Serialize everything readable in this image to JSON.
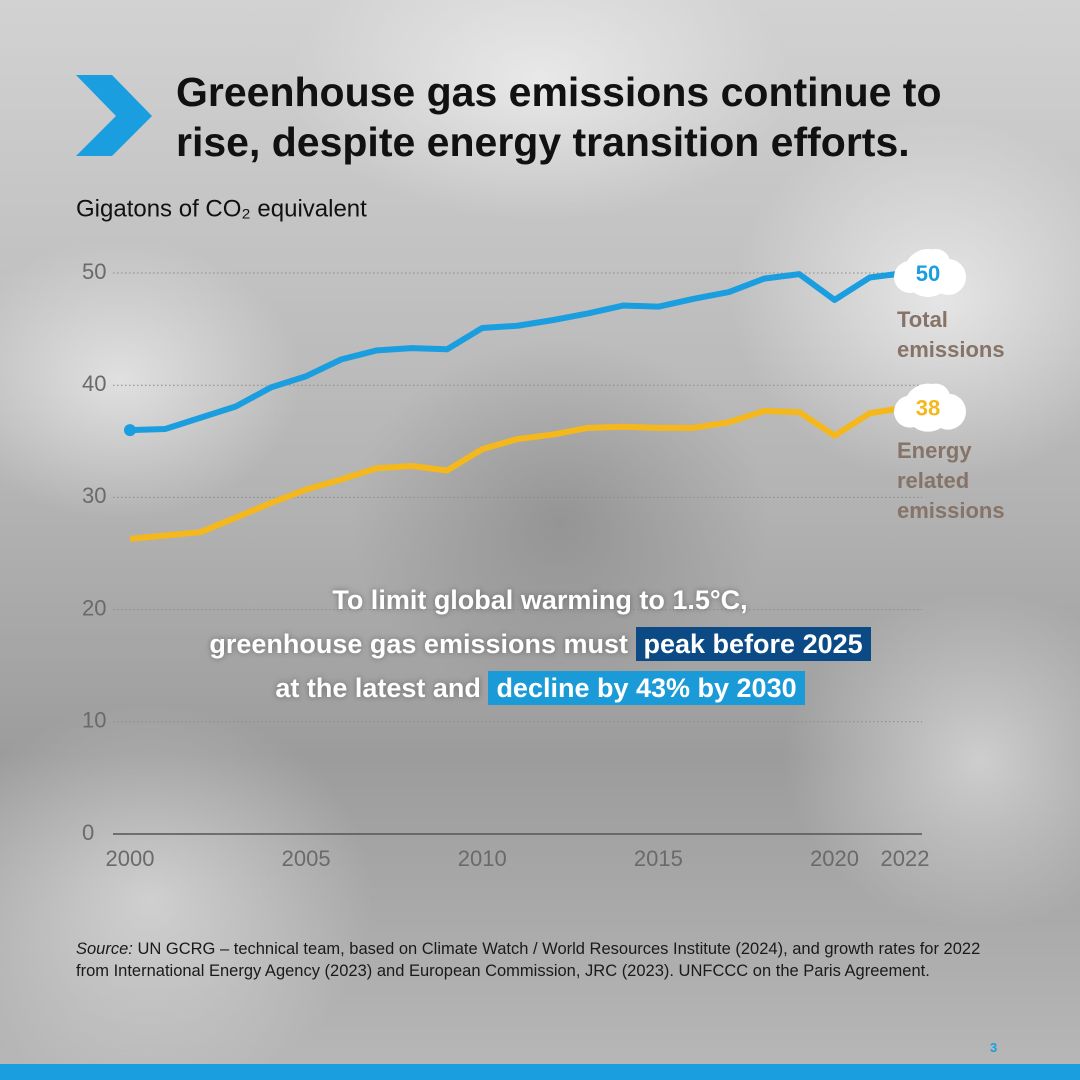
{
  "chart_data": {
    "type": "line",
    "title": [
      "Greenhouse gas emissions continue to",
      "rise, despite energy transition efforts."
    ],
    "y_label": "Gigatons of CO₂ equivalent",
    "x": [
      2000,
      2001,
      2002,
      2003,
      2004,
      2005,
      2006,
      2007,
      2008,
      2009,
      2010,
      2011,
      2012,
      2013,
      2014,
      2015,
      2016,
      2017,
      2018,
      2019,
      2020,
      2021,
      2022
    ],
    "series": [
      {
        "name": "Total emissions",
        "color": "#1a9ee0",
        "values": [
          36.0,
          36.1,
          37.1,
          38.1,
          39.8,
          40.8,
          42.3,
          43.1,
          43.3,
          43.2,
          45.1,
          45.3,
          45.8,
          46.4,
          47.1,
          47.0,
          47.7,
          48.3,
          49.5,
          49.9,
          47.6,
          49.6,
          50
        ]
      },
      {
        "name": "Energy related emissions",
        "color": "#f5b81c",
        "values": [
          26.3,
          26.6,
          26.9,
          28.2,
          29.5,
          30.7,
          31.6,
          32.6,
          32.8,
          32.4,
          34.3,
          35.2,
          35.6,
          36.2,
          36.3,
          36.2,
          36.2,
          36.7,
          37.7,
          37.6,
          35.5,
          37.5,
          38
        ]
      }
    ],
    "xlim": [
      2000,
      2022
    ],
    "xticks": [
      2000,
      2005,
      2010,
      2015,
      2020,
      2022
    ],
    "ylim": [
      0,
      50
    ],
    "yticks": [
      0,
      10,
      20,
      30,
      40,
      50
    ],
    "grid": true,
    "annotation": [
      "To limit global warming to 1.5°C,",
      "greenhouse gas emissions must",
      "peak before 2025",
      "at the latest and",
      "decline by 43% by 2030"
    ],
    "source": [
      "Source:",
      "UN GCRG – technical team, based on Climate Watch / World Resources Institute (2024), and growth rates for 2022 from International Energy Agency (2023) and European Commission, JRC (2023). UNFCCC on the Paris Agreement."
    ]
  },
  "page_number": 3
}
